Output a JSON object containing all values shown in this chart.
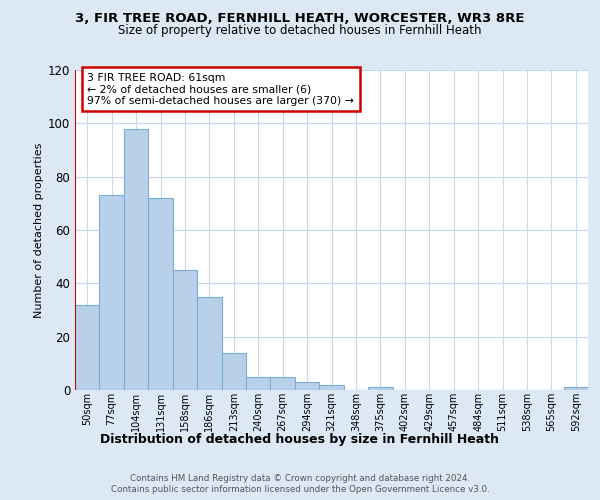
{
  "title1": "3, FIR TREE ROAD, FERNHILL HEATH, WORCESTER, WR3 8RE",
  "title2": "Size of property relative to detached houses in Fernhill Heath",
  "xlabel": "Distribution of detached houses by size in Fernhill Heath",
  "ylabel": "Number of detached properties",
  "categories": [
    "50sqm",
    "77sqm",
    "104sqm",
    "131sqm",
    "158sqm",
    "186sqm",
    "213sqm",
    "240sqm",
    "267sqm",
    "294sqm",
    "321sqm",
    "348sqm",
    "375sqm",
    "402sqm",
    "429sqm",
    "457sqm",
    "484sqm",
    "511sqm",
    "538sqm",
    "565sqm",
    "592sqm"
  ],
  "values": [
    32,
    73,
    98,
    72,
    45,
    35,
    14,
    5,
    5,
    3,
    2,
    0,
    1,
    0,
    0,
    0,
    0,
    0,
    0,
    0,
    1
  ],
  "bar_color": "#b8d0ea",
  "bar_edge_color": "#7aaed4",
  "ylim": [
    0,
    120
  ],
  "yticks": [
    0,
    20,
    40,
    60,
    80,
    100,
    120
  ],
  "annotation_box_color": "#ffffff",
  "annotation_border_color": "#cc0000",
  "annotation_line1": "3 FIR TREE ROAD: 61sqm",
  "annotation_line2": "← 2% of detached houses are smaller (6)",
  "annotation_line3": "97% of semi-detached houses are larger (370) →",
  "footer1": "Contains HM Land Registry data © Crown copyright and database right 2024.",
  "footer2": "Contains public sector information licensed under the Open Government Licence v3.0.",
  "bg_color": "#dde8f5",
  "plot_bg_color": "#ffffff",
  "red_line_color": "#cc0000"
}
